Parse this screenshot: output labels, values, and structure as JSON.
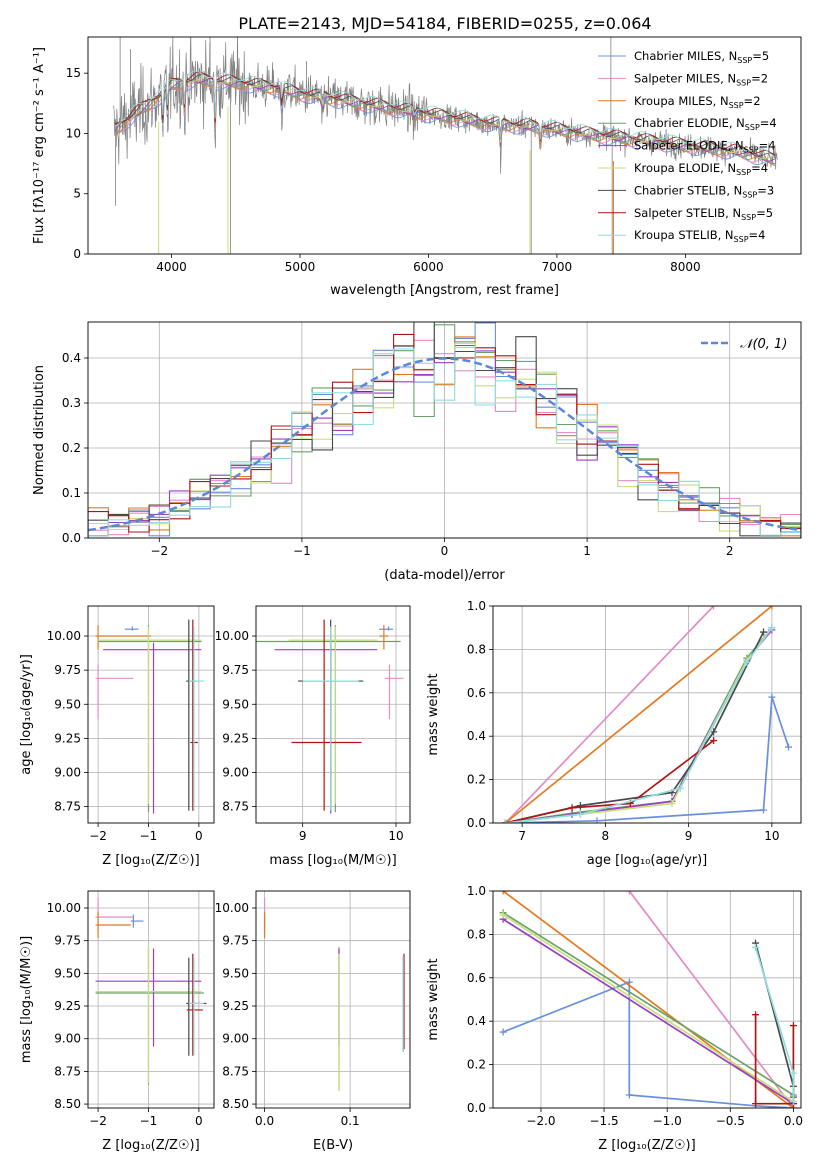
{
  "title": "PLATE=2143, MJD=54184, FIBERID=0255, z=0.064",
  "models": [
    {
      "name": "Chabrier MILES",
      "nssp": "5",
      "color": "#6a8fdc"
    },
    {
      "name": "Salpeter MILES",
      "nssp": "2",
      "color": "#e58bc3"
    },
    {
      "name": "Kroupa MILES",
      "nssp": "2",
      "color": "#e27a21"
    },
    {
      "name": "Chabrier ELODIE",
      "nssp": "4",
      "color": "#6aa36a"
    },
    {
      "name": "Salpeter ELODIE",
      "nssp": "4",
      "color": "#9b3fc4"
    },
    {
      "name": "Kroupa ELODIE",
      "nssp": "4",
      "color": "#c8e07a"
    },
    {
      "name": "Chabrier STELIB",
      "nssp": "3",
      "color": "#4a4a4a"
    },
    {
      "name": "Salpeter STELIB",
      "nssp": "5",
      "color": "#b01414"
    },
    {
      "name": "Kroupa STELIB",
      "nssp": "4",
      "color": "#8fdde0"
    }
  ],
  "chart_data": [
    {
      "id": "spectrum",
      "type": "line",
      "xlabel": "wavelength [Angstrom, rest frame]",
      "ylabel": "Flux [fλ10⁻¹⁷ erg cm⁻² s⁻¹ A⁻¹]",
      "xlim": [
        3350,
        8900
      ],
      "ylim": [
        0,
        18
      ],
      "xticks": [
        "4000",
        "5000",
        "6000",
        "7000",
        "8000"
      ],
      "yticks": [
        "0",
        "5",
        "10",
        "15"
      ],
      "data_color": "#808080",
      "continuum": {
        "x": [
          3550,
          3700,
          3900,
          4000,
          4200,
          4500,
          4800,
          5000,
          5300,
          5600,
          6000,
          6500,
          6800,
          7200,
          7600,
          8000,
          8400,
          8700
        ],
        "y": [
          10.2,
          11.5,
          13.0,
          14.0,
          14.5,
          14.2,
          13.8,
          13.3,
          12.8,
          12.3,
          11.6,
          10.8,
          10.6,
          10.0,
          9.5,
          9.0,
          8.5,
          7.8
        ]
      }
    },
    {
      "id": "residuals",
      "type": "step",
      "xlabel": "(data-model)/error",
      "ylabel": "Normed distribution",
      "xlim": [
        -2.5,
        2.5
      ],
      "ylim": [
        0,
        0.48
      ],
      "xticks": [
        "−2",
        "−1",
        "0",
        "1",
        "2"
      ],
      "yticks": [
        "0.0",
        "0.1",
        "0.2",
        "0.3",
        "0.4"
      ],
      "legend": "𝒩(0, 1)",
      "gaussian_color": "#5b87d6"
    },
    {
      "id": "age-z",
      "type": "errorbar",
      "xlabel": "Z [log₁₀(Z/Z☉)]",
      "ylabel": "age  [log₁₀(age/yr)]",
      "xlim": [
        -2.2,
        0.3
      ],
      "ylim": [
        8.63,
        10.22
      ],
      "xticks": [
        "−2",
        "−1",
        "0"
      ],
      "yticks": [
        "8.75",
        "9.00",
        "9.25",
        "9.50",
        "9.75",
        "10.00"
      ],
      "points": [
        {
          "x": -1.32,
          "xerr": [
            0.15,
            0.12
          ],
          "y": 10.05,
          "yerr": [
            0.01,
            0.02
          ],
          "c": 0
        },
        {
          "x": -2.0,
          "xerr": [
            0.05,
            0.7
          ],
          "y": 9.69,
          "yerr": [
            0.3,
            0.1
          ],
          "c": 1
        },
        {
          "x": -2.0,
          "xerr": [
            0.05,
            1.05
          ],
          "y": 10.0,
          "yerr": [
            0.1,
            0.08
          ],
          "c": 2
        },
        {
          "x": -1.0,
          "xerr": [
            1.0,
            1.05
          ],
          "y": 9.96,
          "yerr": [
            1.25,
            0.12
          ],
          "c": 3
        },
        {
          "x": -0.9,
          "xerr": [
            1.0,
            0.95
          ],
          "y": 9.9,
          "yerr": [
            1.2,
            0.05
          ],
          "c": 4
        },
        {
          "x": -1.0,
          "xerr": [
            1.0,
            1.05
          ],
          "y": 9.97,
          "yerr": [
            1.2,
            0.1
          ],
          "c": 5
        },
        {
          "x": -0.2,
          "xerr": [
            0.05,
            0.15
          ],
          "y": 9.67,
          "yerr": [
            0.95,
            0.45
          ],
          "c": 6
        },
        {
          "x": -0.12,
          "xerr": [
            0.05,
            0.1
          ],
          "y": 9.22,
          "yerr": [
            0.5,
            0.9
          ],
          "c": 7
        },
        {
          "x": -0.1,
          "xerr": [
            0.1,
            0.2
          ],
          "y": 9.67,
          "yerr": [
            0.95,
            0.4
          ],
          "c": 8
        }
      ]
    },
    {
      "id": "age-mass",
      "type": "errorbar",
      "xlabel": "mass [log₁₀(M/M☉)]",
      "ylabel": "",
      "xlim": [
        8.5,
        10.15
      ],
      "ylim": [
        8.63,
        10.22
      ],
      "xticks": [
        "9",
        "10"
      ],
      "yticks": [
        "8.75",
        "9.00",
        "9.25",
        "9.50",
        "9.75",
        "10.00"
      ],
      "points": [
        {
          "x": 9.92,
          "xerr": [
            0.1,
            0.05
          ],
          "y": 10.05,
          "yerr": [
            0.01,
            0.02
          ],
          "c": 0
        },
        {
          "x": 9.93,
          "xerr": [
            0.05,
            0.15
          ],
          "y": 9.69,
          "yerr": [
            0.3,
            0.1
          ],
          "c": 1
        },
        {
          "x": 9.87,
          "xerr": [
            0.05,
            0.05
          ],
          "y": 10.0,
          "yerr": [
            0.1,
            0.08
          ],
          "c": 2
        },
        {
          "x": 9.35,
          "xerr": [
            0.9,
            0.7
          ],
          "y": 9.96,
          "yerr": [
            1.25,
            0.12
          ],
          "c": 3
        },
        {
          "x": 9.3,
          "xerr": [
            0.6,
            0.5
          ],
          "y": 9.9,
          "yerr": [
            1.2,
            0.05
          ],
          "c": 4
        },
        {
          "x": 9.35,
          "xerr": [
            0.5,
            0.45
          ],
          "y": 9.97,
          "yerr": [
            1.2,
            0.1
          ],
          "c": 5
        },
        {
          "x": 9.3,
          "xerr": [
            0.35,
            0.35
          ],
          "y": 9.67,
          "yerr": [
            0.95,
            0.45
          ],
          "c": 6
        },
        {
          "x": 9.23,
          "xerr": [
            0.35,
            0.4
          ],
          "y": 9.22,
          "yerr": [
            0.5,
            0.9
          ],
          "c": 7
        },
        {
          "x": 9.3,
          "xerr": [
            0.3,
            0.3
          ],
          "y": 9.67,
          "yerr": [
            0.95,
            0.4
          ],
          "c": 8
        }
      ]
    },
    {
      "id": "weight-age",
      "type": "line",
      "xlabel": "age  [log₁₀(age/yr)]",
      "ylabel": "mass weight",
      "xlim": [
        6.65,
        10.35
      ],
      "ylim": [
        0,
        1
      ],
      "xticks": [
        "7",
        "8",
        "9",
        "10"
      ],
      "yticks": [
        "0.0",
        "0.2",
        "0.4",
        "0.6",
        "0.8",
        "1.0"
      ],
      "series": [
        {
          "c": 0,
          "x": [
            6.8,
            7.9,
            9.9,
            10.0,
            10.2
          ],
          "y": [
            0.0,
            0.01,
            0.06,
            0.58,
            0.35
          ]
        },
        {
          "c": 1,
          "x": [
            6.8,
            9.3
          ],
          "y": [
            0.0,
            1.0
          ]
        },
        {
          "c": 2,
          "x": [
            6.8,
            10.0
          ],
          "y": [
            0.0,
            1.0
          ]
        },
        {
          "c": 3,
          "x": [
            6.8,
            7.7,
            8.8,
            9.7,
            10.0
          ],
          "y": [
            0.0,
            0.05,
            0.1,
            0.76,
            0.9
          ]
        },
        {
          "c": 4,
          "x": [
            6.8,
            7.6,
            8.8,
            9.7,
            10.0
          ],
          "y": [
            0.0,
            0.04,
            0.1,
            0.75,
            0.89
          ]
        },
        {
          "c": 5,
          "x": [
            6.8,
            7.7,
            8.8,
            9.7,
            10.0
          ],
          "y": [
            0.0,
            0.04,
            0.09,
            0.75,
            0.9
          ]
        },
        {
          "c": 6,
          "x": [
            6.8,
            7.7,
            8.8,
            9.3,
            9.9
          ],
          "y": [
            0.0,
            0.08,
            0.14,
            0.42,
            0.88
          ]
        },
        {
          "c": 7,
          "x": [
            6.8,
            7.6,
            8.3,
            9.3
          ],
          "y": [
            0.0,
            0.07,
            0.09,
            0.38
          ]
        },
        {
          "c": 8,
          "x": [
            6.8,
            7.7,
            8.9,
            9.7,
            10.0
          ],
          "y": [
            0.0,
            0.04,
            0.16,
            0.74,
            0.9
          ]
        }
      ]
    },
    {
      "id": "mass-z",
      "type": "errorbar",
      "xlabel": "Z [log₁₀(Z/Z☉)]",
      "ylabel": "mass [log₁₀(M/M☉)]",
      "xlim": [
        -2.2,
        0.3
      ],
      "ylim": [
        8.47,
        10.13
      ],
      "xticks": [
        "−2",
        "−1",
        "0"
      ],
      "yticks": [
        "8.50",
        "8.75",
        "9.00",
        "9.25",
        "9.50",
        "9.75",
        "10.00"
      ],
      "points": [
        {
          "x": -1.3,
          "xerr": [
            0.05,
            0.2
          ],
          "y": 9.9,
          "yerr": [
            0.05,
            0.05
          ],
          "c": 0
        },
        {
          "x": -2.0,
          "xerr": [
            0.05,
            0.7
          ],
          "y": 9.93,
          "yerr": [
            0.1,
            0.15
          ],
          "c": 1
        },
        {
          "x": -2.0,
          "xerr": [
            0.05,
            0.65
          ],
          "y": 9.87,
          "yerr": [
            0.1,
            0.1
          ],
          "c": 2
        },
        {
          "x": -1.0,
          "xerr": [
            1.05,
            1.1
          ],
          "y": 9.35,
          "yerr": [
            0.7,
            0.35
          ],
          "c": 3
        },
        {
          "x": -0.9,
          "xerr": [
            1.15,
            0.95
          ],
          "y": 9.44,
          "yerr": [
            0.5,
            0.25
          ],
          "c": 4
        },
        {
          "x": -1.0,
          "xerr": [
            1.05,
            1.05
          ],
          "y": 9.36,
          "yerr": [
            0.7,
            0.35
          ],
          "c": 5
        },
        {
          "x": -0.2,
          "xerr": [
            0.05,
            0.35
          ],
          "y": 9.27,
          "yerr": [
            0.4,
            0.35
          ],
          "c": 6
        },
        {
          "x": -0.12,
          "xerr": [
            0.12,
            0.2
          ],
          "y": 9.22,
          "yerr": [
            0.35,
            0.43
          ],
          "c": 7
        },
        {
          "x": -0.1,
          "xerr": [
            0.1,
            0.2
          ],
          "y": 9.27,
          "yerr": [
            0.4,
            0.35
          ],
          "c": 8
        }
      ]
    },
    {
      "id": "mass-ebv",
      "type": "errorbar",
      "xlabel": "E(B-V)",
      "ylabel": "",
      "xlim": [
        -0.01,
        0.17
      ],
      "ylim": [
        8.47,
        10.13
      ],
      "xticks": [
        "0.0",
        "0.1"
      ],
      "yticks": [
        "8.50",
        "8.75",
        "9.00",
        "9.25",
        "9.50",
        "9.75",
        "10.00"
      ],
      "points": [
        {
          "x": 0.0,
          "xerr": [
            0,
            0
          ],
          "y": 9.9,
          "yerr": [
            0.05,
            0.05
          ],
          "c": 0
        },
        {
          "x": 0.0,
          "xerr": [
            0,
            0
          ],
          "y": 9.93,
          "yerr": [
            0.1,
            0.15
          ],
          "c": 1
        },
        {
          "x": 0.0,
          "xerr": [
            0,
            0
          ],
          "y": 9.87,
          "yerr": [
            0.1,
            0.1
          ],
          "c": 2
        },
        {
          "x": 0.087,
          "xerr": [
            0,
            0
          ],
          "y": 9.2,
          "yerr": [
            0.6,
            0.5
          ],
          "c": 3
        },
        {
          "x": 0.087,
          "xerr": [
            0,
            0
          ],
          "y": 9.44,
          "yerr": [
            0.5,
            0.25
          ],
          "c": 4
        },
        {
          "x": 0.087,
          "xerr": [
            0,
            0
          ],
          "y": 9.2,
          "yerr": [
            0.6,
            0.45
          ],
          "c": 5
        },
        {
          "x": 0.162,
          "xerr": [
            0,
            0
          ],
          "y": 9.25,
          "yerr": [
            0.35,
            0.38
          ],
          "c": 6
        },
        {
          "x": 0.163,
          "xerr": [
            0,
            0
          ],
          "y": 9.27,
          "yerr": [
            0.35,
            0.38
          ],
          "c": 7
        },
        {
          "x": 0.162,
          "xerr": [
            0,
            0
          ],
          "y": 9.25,
          "yerr": [
            0.35,
            0.38
          ],
          "c": 8
        }
      ]
    },
    {
      "id": "weight-z",
      "type": "line",
      "xlabel": "Z [log₁₀(Z/Z☉)]",
      "ylabel": "mass weight",
      "xlim": [
        -2.38,
        0.06
      ],
      "ylim": [
        0,
        1
      ],
      "xticks": [
        "−2.0",
        "−1.5",
        "−1.0",
        "−0.5",
        "0.0"
      ],
      "yticks": [
        "0.0",
        "0.2",
        "0.4",
        "0.6",
        "0.8",
        "1.0"
      ],
      "series": [
        {
          "c": 0,
          "x": [
            -2.3,
            -1.3,
            -1.3,
            -0.3,
            0.0
          ],
          "y": [
            0.35,
            0.58,
            0.06,
            0.01,
            0.0
          ]
        },
        {
          "c": 1,
          "x": [
            -1.3,
            0.0
          ],
          "y": [
            1.0,
            0.0
          ]
        },
        {
          "c": 2,
          "x": [
            -2.3,
            0.0
          ],
          "y": [
            1.0,
            0.0
          ]
        },
        {
          "c": 3,
          "x": [
            -2.3,
            0.0
          ],
          "y": [
            0.9,
            0.06
          ]
        },
        {
          "c": 4,
          "x": [
            -2.3,
            0.0
          ],
          "y": [
            0.87,
            0.02
          ]
        },
        {
          "c": 5,
          "x": [
            -2.3,
            0.0
          ],
          "y": [
            0.89,
            0.03
          ]
        },
        {
          "c": 6,
          "x": [
            -0.3,
            0.0,
            0.0
          ],
          "y": [
            0.76,
            0.1,
            0.05
          ]
        },
        {
          "c": 7,
          "x": [
            -0.3,
            -0.3,
            0.0,
            0.0
          ],
          "y": [
            0.43,
            0.02,
            0.02,
            0.38
          ]
        },
        {
          "c": 8,
          "x": [
            -0.3,
            0.0,
            0.0
          ],
          "y": [
            0.74,
            0.16,
            0.03
          ]
        }
      ]
    }
  ]
}
